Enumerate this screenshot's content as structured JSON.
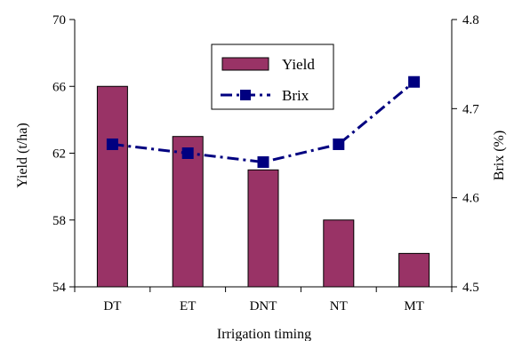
{
  "chart_data": {
    "type": "bar",
    "categories": [
      "DT",
      "ET",
      "DNT",
      "NT",
      "MT"
    ],
    "series": [
      {
        "name": "Yield",
        "type": "bar",
        "axis": "left",
        "color": "#993366",
        "values": [
          66,
          63,
          61,
          58,
          56
        ]
      },
      {
        "name": "Brix",
        "type": "line",
        "axis": "right",
        "color": "#000080",
        "line_style": "dash-dot",
        "marker": "square",
        "values": [
          4.66,
          4.65,
          4.64,
          4.66,
          4.73
        ]
      }
    ],
    "xlabel": "Irrigation timing",
    "ylabel": "Yield (t/ha)",
    "y2label": "Brix (%)",
    "ylim": [
      54,
      70
    ],
    "yticks": [
      "54",
      "58",
      "62",
      "66",
      "70"
    ],
    "y2lim": [
      4.5,
      4.8
    ],
    "y2ticks": [
      "4.5",
      "4.6",
      "4.7",
      "4.8"
    ],
    "grid": false,
    "legend_position": "top-center"
  }
}
